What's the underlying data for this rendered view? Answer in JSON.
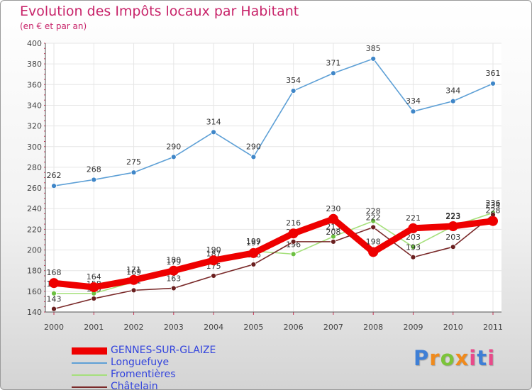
{
  "title": "Evolution des Impôts locaux par Habitant",
  "subtitle": "(en € et par an)",
  "brand": "Proxiti",
  "brand_colors": [
    "#3e7fd6",
    "#f08a1c",
    "#7cc43a",
    "#f08a1c",
    "#e94a8a",
    "#3e7fd6",
    "#e94a8a"
  ],
  "chart_data": {
    "type": "line",
    "title": "Evolution des Impôts locaux par Habitant",
    "subtitle": "(en € et par an)",
    "xlabel": "",
    "ylabel": "",
    "categories": [
      "2000",
      "2001",
      "2002",
      "2003",
      "2004",
      "2005",
      "2006",
      "2007",
      "2008",
      "2009",
      "2010",
      "2011"
    ],
    "ylim": [
      140,
      400
    ],
    "yticks": [
      140,
      160,
      180,
      200,
      220,
      240,
      260,
      280,
      300,
      320,
      340,
      360,
      380,
      400
    ],
    "grid": true,
    "series": [
      {
        "name": "Longuefuye",
        "color": "#5ea0d6",
        "marker": "#3f86c8",
        "values": [
          262,
          268,
          275,
          290,
          314,
          290,
          354,
          371,
          385,
          334,
          344,
          361
        ]
      },
      {
        "name": "Fromentières",
        "color": "#a6e07c",
        "marker": "#6cc040",
        "values": [
          158,
          158,
          169,
          179,
          187,
          199,
          196,
          213,
          228,
          203,
          223,
          236
        ]
      },
      {
        "name": "Châtelain",
        "color": "#7a2a2a",
        "marker": "#6a1f1f",
        "values": [
          143,
          153,
          161,
          163,
          175,
          186,
          208,
          208,
          222,
          193,
          203,
          234
        ]
      },
      {
        "name": "GENNES-SUR-GLAIZE",
        "color": "#ee0000",
        "marker": "#ee0000",
        "values": [
          168,
          164,
          171,
          180,
          190,
          197,
          216,
          230,
          198,
          221,
          223,
          228
        ]
      }
    ],
    "legend": [
      "GENNES-SUR-GLAIZE",
      "Longuefuye",
      "Fromentières",
      "Châtelain"
    ]
  }
}
